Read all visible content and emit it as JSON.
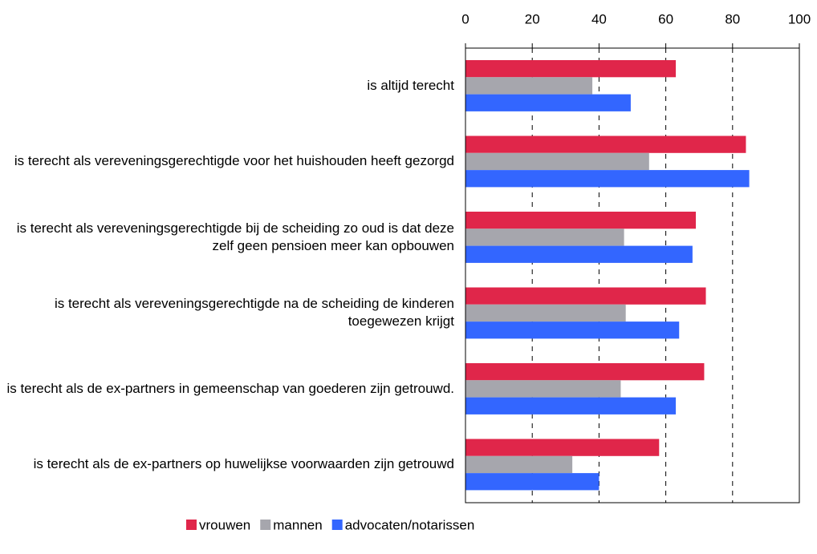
{
  "chart_data": {
    "type": "hbar",
    "categories": [
      "is altijd terecht",
      "is terecht als vereveningsgerechtigde voor het huishouden heeft gezorgd",
      "is terecht als vereveningsgerechtigde bij de scheiding zo oud is dat deze zelf geen pensioen meer kan opbouwen",
      "is terecht als vereveningsgerechtigde na de scheiding de kinderen toegewezen krijgt",
      "is terecht als de ex-partners in gemeenschap van goederen zijn getrouwd.",
      "is terecht als de ex-partners op huwelijkse voorwaarden zijn getrouwd"
    ],
    "series": [
      {
        "name": "vrouwen",
        "color": "#e0264a",
        "values": [
          63,
          84,
          69,
          72,
          71.5,
          58
        ]
      },
      {
        "name": "mannen",
        "color": "#a6a6ad",
        "values": [
          38,
          55,
          47.5,
          48,
          46.5,
          32
        ]
      },
      {
        "name": "advocaten/notarissen",
        "color": "#3366ff",
        "values": [
          49.5,
          85,
          68,
          64,
          63,
          40
        ]
      }
    ],
    "xlim": [
      0,
      100
    ],
    "xticks": [
      0,
      20,
      40,
      60,
      80,
      100
    ],
    "grid": true,
    "legend": "bottom"
  }
}
